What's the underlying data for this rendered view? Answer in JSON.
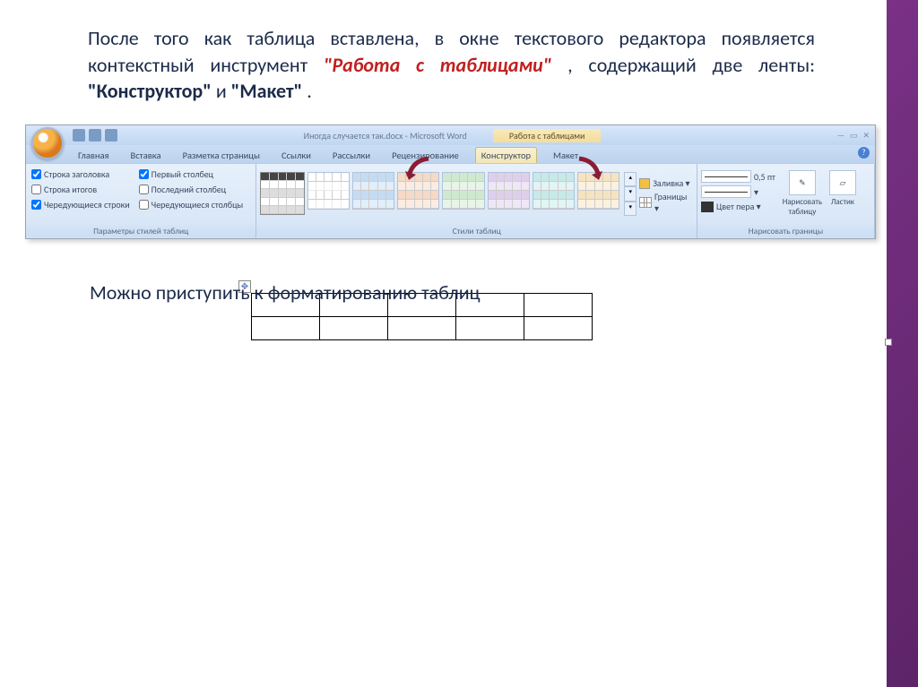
{
  "para": {
    "p1": "После того как таблица вставлена, в окне текстового редактора появляется контекстный инструмент ",
    "red1": "\"Работа с таблицами\"",
    "p2": ", содержащий две ленты: ",
    "blue1": "\"Конструктор\"",
    "p3": " и ",
    "blue2": "\"Макет\"",
    "p4": "."
  },
  "titlebar": {
    "doc": "Иногда случается так.docx - Microsoft Word",
    "context": "Работа с таблицами"
  },
  "tabs": {
    "t1": "Главная",
    "t2": "Вставка",
    "t3": "Разметка страницы",
    "t4": "Ссылки",
    "t5": "Рассылки",
    "t6": "Рецензирование",
    "t7": "Конструктор",
    "t8": "Макет"
  },
  "options": {
    "o1": "Строка заголовка",
    "o2": "Строка итогов",
    "o3": "Чередующиеся строки",
    "o4": "Первый столбец",
    "o5": "Последний столбец",
    "o6": "Чередующиеся столбцы"
  },
  "groups": {
    "g1": "Параметры стилей таблиц",
    "g2": "Стили таблиц",
    "g3": "Нарисовать границы"
  },
  "fill": {
    "shading": "Заливка ▾",
    "borders": "Границы ▾",
    "pt": "0,5 пт",
    "pen": "Цвет пера ▾",
    "draw": "Нарисовать таблицу",
    "eraser": "Ластик"
  },
  "bottom": "Можно приступить к форматированию таблиц",
  "arrow_color": "#8a1c33",
  "style_colors": [
    "#555555",
    "#6ca8e0",
    "#e8a070",
    "#88c888",
    "#b088d0",
    "#70c8c8",
    "#e8b860"
  ]
}
